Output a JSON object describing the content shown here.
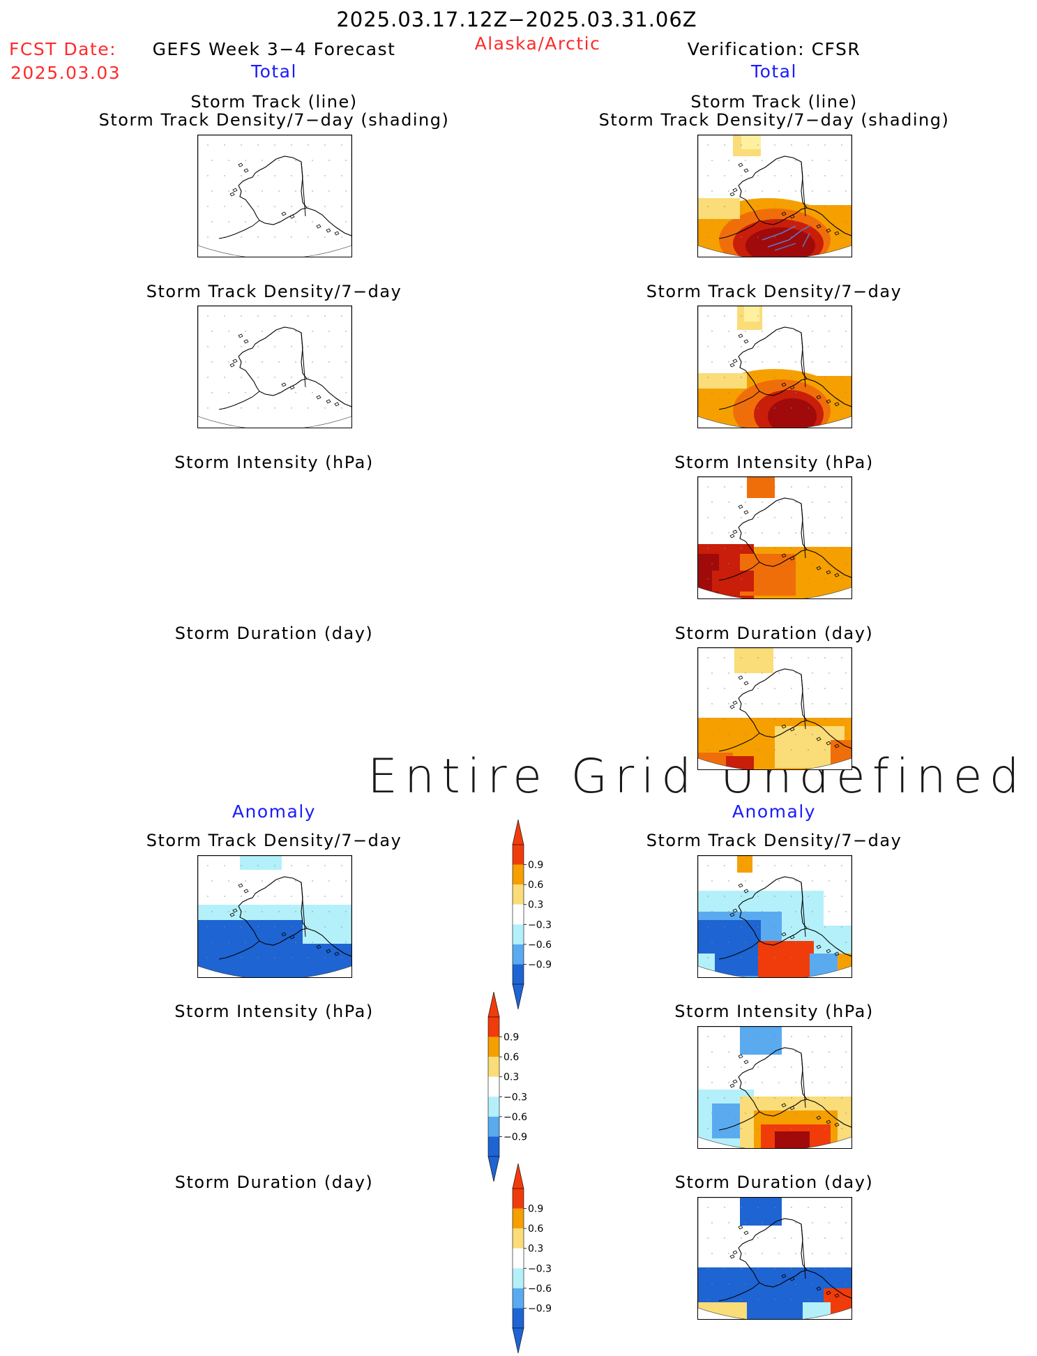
{
  "header": {
    "date_range": "2025.03.17.12Z−2025.03.31.06Z",
    "fcst_label": "FCST Date:",
    "fcst_date": "2025.03.03",
    "forecast_title": "GEFS Week 3−4 Forecast",
    "region": "Alaska/Arctic",
    "verification": "Verification: CFSR"
  },
  "left": {
    "total_label": "Total",
    "anomaly_label": "Anomaly",
    "titles": {
      "track_line": "Storm Track (line)",
      "track_density_shading": "Storm Track Density/7−day (shading)",
      "track_density": "Storm Track Density/7−day",
      "intensity": "Storm Intensity (hPa)",
      "duration": "Storm Duration (day)",
      "anom_density": "Storm Track Density/7−day",
      "anom_intensity": "Storm Intensity (hPa)",
      "anom_duration": "Storm Duration (day)"
    }
  },
  "right": {
    "total_label": "Total",
    "anomaly_label": "Anomaly",
    "titles": {
      "track_line": "Storm Track (line)",
      "track_density_shading": "Storm Track Density/7−day (shading)",
      "track_density": "Storm Track Density/7−day",
      "intensity": "Storm Intensity (hPa)",
      "duration": "Storm Duration (day)",
      "anom_density": "Storm Track Density/7−day",
      "anom_intensity": "Storm Intensity (hPa)",
      "anom_duration": "Storm Duration (day)"
    }
  },
  "undefined_message": "Entire Grid Undefined",
  "colorbar": {
    "ticks": [
      "0.9",
      "0.6",
      "0.3",
      "−0.3",
      "−0.6",
      "−0.9"
    ],
    "colors": [
      "#f03c0a",
      "#f5a000",
      "#fadc78",
      "#ffffff",
      "#b4f0fa",
      "#5aaaf0",
      "#1e64d2"
    ]
  },
  "palette": {
    "total_light": "#fff0a0",
    "total_yellow": "#fadc78",
    "total_orange": "#f5a000",
    "total_dark_orange": "#f06e0a",
    "total_red": "#c81e0a",
    "total_dark_red": "#a00a0a",
    "anom_dark_blue": "#1e64d2",
    "anom_blue": "#5aaaf0",
    "anom_light_blue": "#b4f0fa",
    "anom_red": "#f03c0a"
  }
}
